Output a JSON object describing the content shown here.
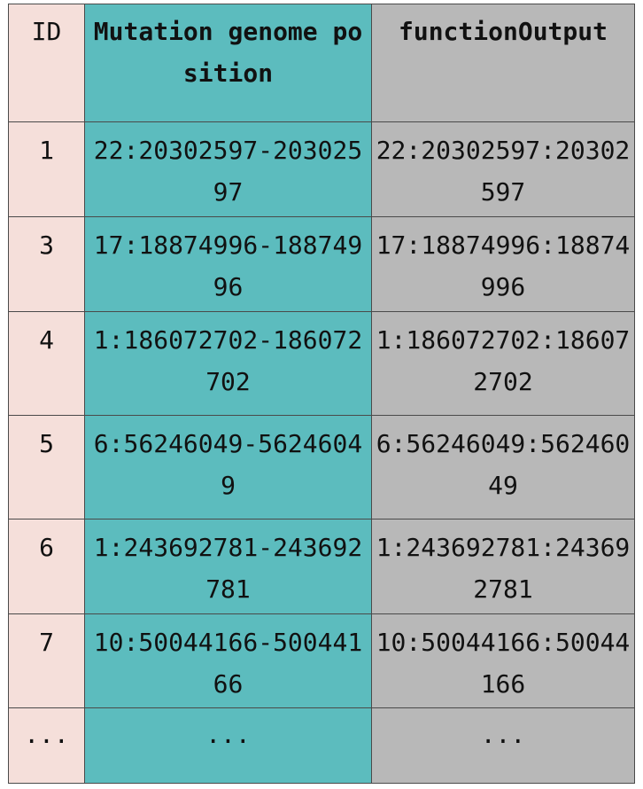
{
  "table": {
    "headers": {
      "id": "ID",
      "mutation": "Mutation genome position",
      "function": "functionOutput"
    },
    "rows": [
      {
        "id": "1",
        "mutation": "22:20302597-20302597",
        "function": "22:20302597:20302597"
      },
      {
        "id": "3",
        "mutation": "17:18874996-18874996",
        "function": "17:18874996:18874996"
      },
      {
        "id": "4",
        "mutation": "1:186072702-186072702",
        "function": "1:186072702:186072702"
      },
      {
        "id": "5",
        "mutation": "6:56246049-56246049",
        "function": "6:56246049:56246049"
      },
      {
        "id": "6",
        "mutation": "1:243692781-243692781",
        "function": "1:243692781:243692781"
      },
      {
        "id": "7",
        "mutation": "10:50044166-50044166",
        "function": "10:50044166:50044166"
      },
      {
        "id": "...",
        "mutation": "...",
        "function": "..."
      }
    ],
    "colors": {
      "id_column": "#f5dfda",
      "mutation_column": "#5cbcbe",
      "function_column": "#b8b8b8",
      "border": "#4a4a4a"
    }
  }
}
